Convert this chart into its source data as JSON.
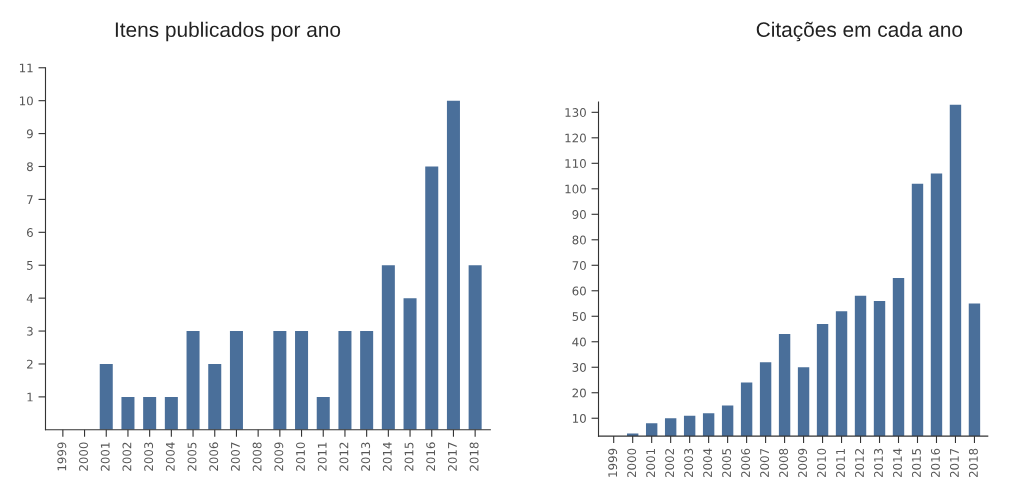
{
  "chart_data": [
    {
      "type": "bar",
      "title": "Itens publicados por ano",
      "categories": [
        "1999",
        "2000",
        "2001",
        "2002",
        "2003",
        "2004",
        "2005",
        "2006",
        "2007",
        "2008",
        "2009",
        "2010",
        "2011",
        "2012",
        "2013",
        "2014",
        "2015",
        "2016",
        "2017",
        "2018"
      ],
      "values": [
        0,
        0,
        2,
        1,
        1,
        1,
        3,
        2,
        3,
        0,
        3,
        3,
        1,
        3,
        3,
        5,
        4,
        8,
        10,
        5
      ],
      "color": "#4a6f9a",
      "ylim": [
        0,
        11
      ],
      "yticks": [
        1,
        2,
        3,
        4,
        5,
        6,
        7,
        8,
        9,
        10,
        11
      ],
      "grid": false
    },
    {
      "type": "bar",
      "title": "Citações em cada ano",
      "categories": [
        "1999",
        "2000",
        "2001",
        "2002",
        "2003",
        "2004",
        "2005",
        "2006",
        "2007",
        "2008",
        "2009",
        "2010",
        "2011",
        "2012",
        "2013",
        "2014",
        "2015",
        "2016",
        "2017",
        "2018"
      ],
      "values": [
        null,
        4,
        8,
        10,
        11,
        12,
        15,
        24,
        32,
        43,
        30,
        47,
        52,
        58,
        56,
        65,
        102,
        106,
        133,
        55
      ],
      "color": "#4a6f9a",
      "ylim": [
        3,
        134
      ],
      "yticks": [
        10,
        20,
        30,
        40,
        50,
        60,
        70,
        80,
        90,
        100,
        110,
        120,
        130
      ],
      "grid": false
    }
  ]
}
